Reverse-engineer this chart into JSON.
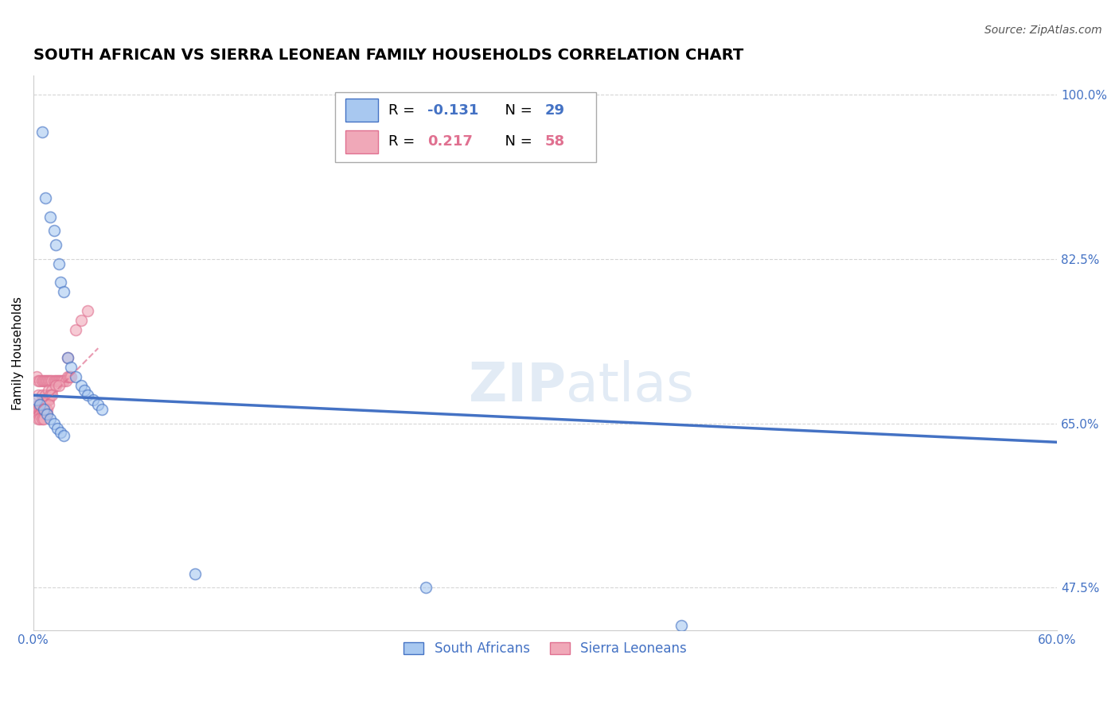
{
  "title": "SOUTH AFRICAN VS SIERRA LEONEAN FAMILY HOUSEHOLDS CORRELATION CHART",
  "source": "Source: ZipAtlas.com",
  "ylabel": "Family Households",
  "xlim": [
    0.0,
    0.6
  ],
  "ylim": [
    0.43,
    1.02
  ],
  "xticks": [
    0.0,
    0.12,
    0.24,
    0.36,
    0.48,
    0.6
  ],
  "xticklabels": [
    "0.0%",
    "",
    "",
    "",
    "",
    "60.0%"
  ],
  "yticks": [
    0.475,
    0.65,
    0.825,
    1.0
  ],
  "yticklabels": [
    "47.5%",
    "65.0%",
    "82.5%",
    "100.0%"
  ],
  "watermark": "ZIPAtlas",
  "sa_x": [
    0.005,
    0.007,
    0.01,
    0.012,
    0.013,
    0.015,
    0.016,
    0.018,
    0.02,
    0.022,
    0.025,
    0.028,
    0.03,
    0.032,
    0.035,
    0.038,
    0.04,
    0.002,
    0.004,
    0.006,
    0.008,
    0.01,
    0.012,
    0.014,
    0.016,
    0.018,
    0.095,
    0.23,
    0.38
  ],
  "sa_y": [
    0.96,
    0.89,
    0.87,
    0.855,
    0.84,
    0.82,
    0.8,
    0.79,
    0.72,
    0.71,
    0.7,
    0.69,
    0.685,
    0.68,
    0.675,
    0.67,
    0.665,
    0.675,
    0.67,
    0.665,
    0.66,
    0.655,
    0.65,
    0.645,
    0.64,
    0.637,
    0.49,
    0.475,
    0.435
  ],
  "sl_x": [
    0.002,
    0.003,
    0.004,
    0.005,
    0.006,
    0.007,
    0.008,
    0.009,
    0.01,
    0.011,
    0.012,
    0.013,
    0.014,
    0.015,
    0.016,
    0.017,
    0.018,
    0.019,
    0.02,
    0.021,
    0.022,
    0.003,
    0.005,
    0.007,
    0.009,
    0.011,
    0.013,
    0.015,
    0.003,
    0.004,
    0.005,
    0.006,
    0.007,
    0.008,
    0.009,
    0.01,
    0.011,
    0.003,
    0.004,
    0.005,
    0.006,
    0.007,
    0.008,
    0.009,
    0.003,
    0.004,
    0.005,
    0.006,
    0.007,
    0.008,
    0.003,
    0.004,
    0.005,
    0.006,
    0.02,
    0.025,
    0.028,
    0.032
  ],
  "sl_y": [
    0.7,
    0.695,
    0.695,
    0.695,
    0.695,
    0.695,
    0.695,
    0.695,
    0.695,
    0.695,
    0.695,
    0.695,
    0.695,
    0.695,
    0.695,
    0.695,
    0.695,
    0.695,
    0.7,
    0.7,
    0.7,
    0.68,
    0.68,
    0.68,
    0.685,
    0.685,
    0.69,
    0.69,
    0.67,
    0.67,
    0.67,
    0.675,
    0.675,
    0.675,
    0.675,
    0.68,
    0.68,
    0.665,
    0.665,
    0.665,
    0.665,
    0.665,
    0.665,
    0.67,
    0.66,
    0.66,
    0.66,
    0.66,
    0.66,
    0.66,
    0.655,
    0.655,
    0.655,
    0.655,
    0.72,
    0.75,
    0.76,
    0.77
  ],
  "blue_line_x": [
    0.0,
    0.6
  ],
  "blue_line_y": [
    0.68,
    0.63
  ],
  "pink_line_x": [
    0.0,
    0.038
  ],
  "pink_line_y": [
    0.66,
    0.73
  ],
  "blue_color": "#4472c4",
  "blue_fill": "#a8c8f0",
  "pink_color": "#e07090",
  "pink_fill": "#f0a8b8",
  "title_fontsize": 14,
  "source_fontsize": 10,
  "axis_label_fontsize": 11,
  "tick_fontsize": 11,
  "dot_size": 100,
  "background_color": "#ffffff",
  "grid_color": "#cccccc",
  "right_tick_color": "#4472c4"
}
